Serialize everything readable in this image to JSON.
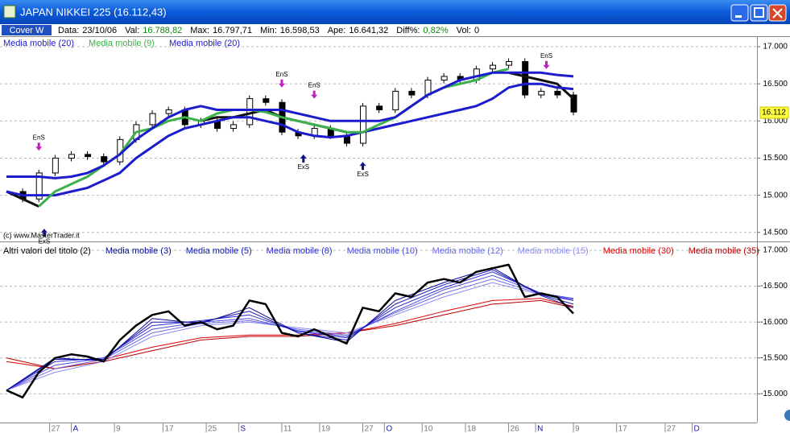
{
  "window": {
    "title": "JAPAN NIKKEI 225 (16.112,43)"
  },
  "toolbar": {
    "button": "Cover W",
    "fields": [
      {
        "label": "Data:",
        "value": "23/10/06"
      },
      {
        "label": "Val:",
        "value": "16.788,82"
      },
      {
        "label": "Max:",
        "value": "16.797,71"
      },
      {
        "label": "Min:",
        "value": "16.598,53"
      },
      {
        "label": "Ape:",
        "value": "16.641,32"
      },
      {
        "label": "Diff%:",
        "value": "0,82%"
      },
      {
        "label": "Vol:",
        "value": "0"
      }
    ]
  },
  "chart_data": [
    {
      "type": "candle-line",
      "watermark": "(c) www.MasterTrader.it",
      "x": [
        0,
        3,
        6,
        9,
        12,
        15,
        18,
        21,
        24,
        27,
        30,
        33,
        36,
        39,
        42,
        45,
        48,
        51,
        54,
        57,
        60,
        63,
        66,
        69,
        72,
        75,
        78,
        81,
        84,
        87,
        90,
        93,
        96,
        99,
        102,
        105
      ],
      "close": [
        15050,
        14950,
        15300,
        15500,
        15550,
        15520,
        15450,
        15750,
        15950,
        16100,
        16150,
        15950,
        16000,
        15900,
        15950,
        16300,
        16250,
        15850,
        15800,
        15900,
        15800,
        15700,
        16200,
        16150,
        16400,
        16350,
        16550,
        16600,
        16550,
        16700,
        16750,
        16800,
        16350,
        16400,
        16350,
        16120
      ],
      "close_color": "#000000",
      "series": [
        {
          "name": "Media mobile (20)",
          "color": "#1c1ccc",
          "values": [
            15250,
            15250,
            15250,
            15230,
            15250,
            15300,
            15400,
            15550,
            15750,
            15900,
            16050,
            16150,
            16200,
            16150,
            16150,
            16150,
            16150,
            16150,
            16100,
            16050,
            16000,
            16000,
            16000,
            16000,
            16050,
            16200,
            16350,
            16450,
            16550,
            16600,
            16650,
            16650,
            16650,
            16650,
            16620,
            16600
          ]
        },
        {
          "name": "Media mobile (9)",
          "color": "#3cb04a",
          "values": [
            null,
            null,
            14850,
            15050,
            15150,
            15250,
            15400,
            15550,
            15850,
            15900,
            16000,
            16050,
            16000,
            16100,
            16150,
            16150,
            16120,
            16050,
            16000,
            15950,
            15900,
            15850,
            15850,
            15950,
            16050,
            16200,
            16350,
            16450,
            16500,
            16550,
            16650,
            16700,
            null,
            null,
            null,
            null
          ]
        },
        {
          "name": "Media mobile (20)",
          "color": "#1c1ccc",
          "values": [
            15050,
            15000,
            15000,
            15000,
            15050,
            15100,
            15200,
            15300,
            15500,
            15650,
            15800,
            15900,
            15950,
            16000,
            16050,
            16050,
            16000,
            15950,
            15850,
            15800,
            15780,
            15800,
            15850,
            15900,
            15950,
            16000,
            16050,
            16100,
            16150,
            16200,
            16300,
            16450,
            16500,
            16500,
            16450,
            16430
          ]
        },
        {
          "color": "#111111",
          "values": [
            15050,
            14950,
            14850,
            null,
            null,
            null,
            null,
            null,
            null,
            null,
            null,
            null,
            16000,
            16050,
            16050,
            16100,
            16150,
            16050,
            16000,
            15950,
            15900,
            15850,
            null,
            null,
            null,
            null,
            null,
            null,
            null,
            null,
            null,
            16650,
            16600,
            16550,
            16500,
            16300
          ]
        }
      ],
      "signals": [
        {
          "label": "EnS",
          "x": 6,
          "value": 15600
        },
        {
          "label": "ExS",
          "x": 7,
          "value": 14550
        },
        {
          "label": "EnS",
          "x": 51,
          "value": 16450
        },
        {
          "label": "ExS",
          "x": 55,
          "value": 15550
        },
        {
          "label": "EnS",
          "x": 57,
          "value": 16300
        },
        {
          "label": "ExS",
          "x": 66,
          "value": 15450
        },
        {
          "label": "EnS",
          "x": 100,
          "value": 16700
        }
      ],
      "last_price": {
        "value": 16112,
        "label": "16.112"
      },
      "xlim": [
        0,
        139
      ],
      "ylim": [
        14400,
        17130
      ],
      "yticks": [
        {
          "value": 17000,
          "label": "17.000"
        },
        {
          "value": 16500,
          "label": "16.500"
        },
        {
          "value": 16000,
          "label": "16.000"
        },
        {
          "value": 15500,
          "label": "15.500"
        },
        {
          "value": 15000,
          "label": "15.000"
        },
        {
          "value": 14500,
          "label": "14.500"
        }
      ],
      "grid": true
    },
    {
      "type": "line",
      "series": [
        {
          "name": "Altri valori del titolo (2)",
          "color": "#000000",
          "width": 2.5,
          "x": [
            0,
            3,
            6,
            9,
            12,
            15,
            18,
            21,
            24,
            27,
            30,
            33,
            36,
            39,
            42,
            45,
            48,
            51,
            54,
            57,
            60,
            63,
            66,
            69,
            72,
            75,
            78,
            81,
            84,
            87,
            90,
            93,
            96,
            99,
            102,
            105
          ],
          "values": [
            15050,
            14950,
            15300,
            15500,
            15550,
            15520,
            15450,
            15750,
            15950,
            16100,
            16150,
            15950,
            16000,
            15900,
            15950,
            16300,
            16250,
            15850,
            15800,
            15900,
            15800,
            15700,
            16200,
            16150,
            16400,
            16350,
            16550,
            16600,
            16550,
            16700,
            16750,
            16800,
            16350,
            16400,
            16350,
            16120
          ]
        },
        {
          "name": "Media mobile (3)",
          "color": "#0a0a9a",
          "width": 1,
          "x": [
            0,
            9,
            18,
            27,
            36,
            45,
            54,
            63,
            72,
            81,
            90,
            99,
            105
          ],
          "values": [
            15050,
            15500,
            15460,
            16050,
            15980,
            16200,
            15850,
            15720,
            16300,
            16550,
            16760,
            16370,
            16200
          ]
        },
        {
          "name": "Media mobile (5)",
          "color": "#1515b5",
          "width": 1,
          "x": [
            0,
            9,
            18,
            27,
            36,
            45,
            54,
            63,
            72,
            81,
            90,
            99,
            105
          ],
          "values": [
            15050,
            15480,
            15480,
            16000,
            16000,
            16150,
            15850,
            15750,
            16250,
            16520,
            16730,
            16380,
            16250
          ]
        },
        {
          "name": "Media mobile (8)",
          "color": "#2a2ad0",
          "width": 1,
          "x": [
            0,
            9,
            18,
            27,
            36,
            45,
            54,
            63,
            72,
            81,
            90,
            99,
            105
          ],
          "values": [
            15050,
            15450,
            15500,
            15950,
            16020,
            16100,
            15870,
            15780,
            16200,
            16480,
            16700,
            16400,
            16300
          ]
        },
        {
          "name": "Media mobile (10)",
          "color": "#4a4ae0",
          "width": 1,
          "x": [
            0,
            9,
            18,
            27,
            36,
            45,
            54,
            63,
            72,
            81,
            90,
            99,
            105
          ],
          "values": [
            15050,
            15400,
            15500,
            15900,
            16000,
            16050,
            15880,
            15800,
            16150,
            16450,
            16650,
            16400,
            16330
          ]
        },
        {
          "name": "Media mobile (12)",
          "color": "#6b6bea",
          "width": 1,
          "x": [
            0,
            9,
            18,
            27,
            36,
            45,
            54,
            63,
            72,
            81,
            90,
            99,
            105
          ],
          "values": [
            15050,
            15350,
            15480,
            15850,
            15980,
            16020,
            15900,
            15820,
            16130,
            16400,
            16600,
            16390,
            16320
          ]
        },
        {
          "name": "Media mobile (15)",
          "color": "#8c8cf2",
          "width": 1,
          "x": [
            0,
            9,
            18,
            27,
            36,
            45,
            54,
            63,
            72,
            81,
            90,
            99,
            105
          ],
          "values": [
            15050,
            15300,
            15450,
            15800,
            15950,
            16000,
            15920,
            15850,
            16100,
            16350,
            16550,
            16380,
            16300
          ]
        },
        {
          "name": "Media mobile (30)",
          "color": "#e00000",
          "width": 1,
          "x": [
            0,
            9,
            18,
            27,
            36,
            45,
            54,
            63,
            72,
            81,
            90,
            99,
            105
          ],
          "values": [
            15450,
            15350,
            15480,
            15650,
            15780,
            15820,
            15820,
            15850,
            15980,
            16150,
            16300,
            16330,
            16220
          ]
        },
        {
          "name": "Media mobile (35)",
          "color": "#b80000",
          "width": 1,
          "x": [
            0,
            9,
            18,
            27,
            36,
            45,
            54,
            63,
            72,
            81,
            90,
            99,
            105
          ],
          "values": [
            15500,
            15350,
            15450,
            15600,
            15750,
            15800,
            15800,
            15850,
            15950,
            16100,
            16250,
            16300,
            16200
          ]
        }
      ],
      "xlim": [
        0,
        139
      ],
      "ylim": [
        14600,
        17090
      ],
      "xticks": [
        {
          "value": 8,
          "label": "27"
        },
        {
          "value": 12,
          "label": "A"
        },
        {
          "value": 20,
          "label": "9"
        },
        {
          "value": 29,
          "label": "17"
        },
        {
          "value": 37,
          "label": "25"
        },
        {
          "value": 43,
          "label": "S"
        },
        {
          "value": 51,
          "label": "11"
        },
        {
          "value": 58,
          "label": "19"
        },
        {
          "value": 66,
          "label": "27"
        },
        {
          "value": 70,
          "label": "O"
        },
        {
          "value": 77,
          "label": "10"
        },
        {
          "value": 85,
          "label": "18"
        },
        {
          "value": 93,
          "label": "26"
        },
        {
          "value": 98,
          "label": "N"
        },
        {
          "value": 105,
          "label": "9"
        },
        {
          "value": 113,
          "label": "17"
        },
        {
          "value": 122,
          "label": "27"
        },
        {
          "value": 127,
          "label": "D"
        }
      ],
      "yticks": [
        {
          "value": 17000,
          "label": "17.000"
        },
        {
          "value": 16500,
          "label": "-16.500"
        },
        {
          "value": 16000,
          "label": "-16.000"
        },
        {
          "value": 15500,
          "label": "-15.500"
        },
        {
          "value": 15000,
          "label": "-15.000"
        }
      ],
      "grid": true
    }
  ]
}
